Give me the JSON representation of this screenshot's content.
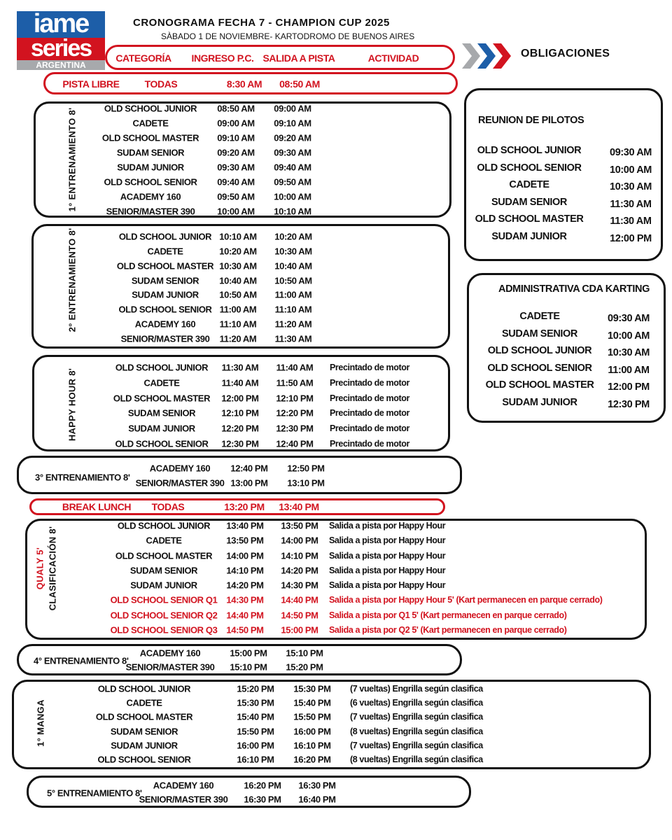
{
  "logo": {
    "line1": "iame",
    "line2": "series",
    "line3": "ARGENTINA",
    "colors": {
      "blue": "#1d5ea8",
      "red": "#d2131f",
      "gray": "#a7a9ac"
    }
  },
  "header": {
    "title": "CRONOGRAMA FECHA 7 - CHAMPION CUP 2025",
    "subtitle": "SÀBADO 1 DE NOVIEMBRE- KARTODROMO DE BUENOS AIRES",
    "columns": [
      "CATEGORÍA",
      "INGRESO P.C.",
      "SALIDA A PISTA",
      "ACTIVIDAD"
    ],
    "obligaciones": "OBLIGACIONES"
  },
  "accent_color": "#d2131f",
  "pista_libre": {
    "label": "PISTA LIBRE",
    "cat": "TODAS",
    "in": "8:30 AM",
    "out": "08:50 AM"
  },
  "break_lunch": {
    "label": "BREAK LUNCH",
    "cat": "TODAS",
    "in": "13:20 PM",
    "out": "13:40 PM"
  },
  "sessions": [
    {
      "label": "1° ENTRENAMIENTO 8'",
      "rows": [
        [
          "OLD SCHOOL JUNIOR",
          "08:50 AM",
          "09:00 AM",
          ""
        ],
        [
          "CADETE",
          "09:00 AM",
          "09:10 AM",
          ""
        ],
        [
          "OLD SCHOOL MASTER",
          "09:10 AM",
          "09:20 AM",
          ""
        ],
        [
          "SUDAM SENIOR",
          "09:20 AM",
          "09:30 AM",
          ""
        ],
        [
          "SUDAM JUNIOR",
          "09:30 AM",
          "09:40 AM",
          ""
        ],
        [
          "OLD SCHOOL SENIOR",
          "09:40 AM",
          "09:50 AM",
          ""
        ],
        [
          "ACADEMY 160",
          "09:50 AM",
          "10:00 AM",
          ""
        ],
        [
          "SENIOR/MASTER 390",
          "10:00 AM",
          "10:10 AM",
          ""
        ]
      ]
    },
    {
      "label": "2° ENTRENAMIENTO 8'",
      "rows": [
        [
          "OLD SCHOOL JUNIOR",
          "10:10 AM",
          "10:20 AM",
          ""
        ],
        [
          "CADETE",
          "10:20 AM",
          "10:30 AM",
          ""
        ],
        [
          "OLD SCHOOL MASTER",
          "10:30 AM",
          "10:40 AM",
          ""
        ],
        [
          "SUDAM SENIOR",
          "10:40 AM",
          "10:50 AM",
          ""
        ],
        [
          "SUDAM JUNIOR",
          "10:50 AM",
          "11:00 AM",
          ""
        ],
        [
          "OLD SCHOOL SENIOR",
          "11:00 AM",
          "11:10 AM",
          ""
        ],
        [
          "ACADEMY 160",
          "11:10 AM",
          "11:20 AM",
          ""
        ],
        [
          "SENIOR/MASTER 390",
          "11:20 AM",
          "11:30 AM",
          ""
        ]
      ]
    },
    {
      "label": "HAPPY HOUR 8'",
      "rows": [
        [
          "OLD SCHOOL JUNIOR",
          "11:30 AM",
          "11:40 AM",
          "Precintado de motor"
        ],
        [
          "CADETE",
          "11:40 AM",
          "11:50 AM",
          "Precintado de motor"
        ],
        [
          "OLD SCHOOL MASTER",
          "12:00 PM",
          "12:10 PM",
          "Precintado de motor"
        ],
        [
          "SUDAM SENIOR",
          "12:10 PM",
          "12:20 PM",
          "Precintado de motor"
        ],
        [
          "SUDAM JUNIOR",
          "12:20 PM",
          "12:30 PM",
          "Precintado de motor"
        ],
        [
          "OLD SCHOOL SENIOR",
          "12:30 PM",
          "12:40 PM",
          "Precintado de motor"
        ]
      ]
    },
    {
      "label": "3° ENTRENAMIENTO 8'",
      "rows": [
        [
          "ACADEMY 160",
          "12:40 PM",
          "12:50 PM",
          ""
        ],
        [
          "SENIOR/MASTER 390",
          "13:00 PM",
          "13:10 PM",
          ""
        ]
      ]
    },
    {
      "label": "CLASIFICACIÓN 8'",
      "label2": "QUALY 5'",
      "rows": [
        [
          "OLD SCHOOL JUNIOR",
          "13:40 PM",
          "13:50 PM",
          "Salida a pista por Happy Hour"
        ],
        [
          "CADETE",
          "13:50 PM",
          "14:00 PM",
          "Salida a pista por Happy Hour"
        ],
        [
          "OLD SCHOOL MASTER",
          "14:00 PM",
          "14:10 PM",
          "Salida a pista por Happy Hour"
        ],
        [
          "SUDAM SENIOR",
          "14:10 PM",
          "14:20 PM",
          "Salida a pista por Happy Hour"
        ],
        [
          "SUDAM JUNIOR",
          "14:20 PM",
          "14:30 PM",
          "Salida a pista por Happy Hour"
        ],
        [
          "OLD SCHOOL SENIOR Q1",
          "14:30 PM",
          "14:40 PM",
          "Salida a pista por Happy Hour 5' (Kart permanecen en parque cerrado)"
        ],
        [
          "OLD SCHOOL SENIOR Q2",
          "14:40 PM",
          "14:50 PM",
          "Salida a pista por Q1 5' (Kart permanecen en parque cerrado)"
        ],
        [
          "OLD SCHOOL SENIOR Q3",
          "14:50 PM",
          "15:00 PM",
          "Salida a pista por Q2 5' (Kart permanecen en parque cerrado)"
        ]
      ],
      "red_rows_from": 5
    },
    {
      "label": "4° ENTRENAMIENTO 8'",
      "rows": [
        [
          "ACADEMY 160",
          "15:00 PM",
          "15:10 PM",
          ""
        ],
        [
          "SENIOR/MASTER 390",
          "15:10 PM",
          "15:20 PM",
          ""
        ]
      ]
    },
    {
      "label": "1° MANGA",
      "rows": [
        [
          "OLD SCHOOL JUNIOR",
          "15:20 PM",
          "15:30 PM",
          "(7 vueltas) Engrilla según clasifica"
        ],
        [
          "CADETE",
          "15:30 PM",
          "15:40 PM",
          "(6 vueltas) Engrilla según clasifica"
        ],
        [
          "OLD SCHOOL MASTER",
          "15:40 PM",
          "15:50 PM",
          "(7 vueltas) Engrilla según clasifica"
        ],
        [
          "SUDAM SENIOR",
          "15:50 PM",
          "16:00 PM",
          "(8 vueltas) Engrilla según clasifica"
        ],
        [
          "SUDAM JUNIOR",
          "16:00 PM",
          "16:10 PM",
          "(7 vueltas) Engrilla según clasifica"
        ],
        [
          "OLD SCHOOL SENIOR",
          "16:10 PM",
          "16:20 PM",
          "(8 vueltas) Engrilla según clasifica"
        ]
      ]
    },
    {
      "label": "5° ENTRENAMIENTO 8'",
      "rows": [
        [
          "ACADEMY 160",
          "16:20 PM",
          "16:30 PM",
          ""
        ],
        [
          "SENIOR/MASTER 390",
          "16:30 PM",
          "16:40 PM",
          ""
        ]
      ]
    }
  ],
  "obligations": [
    {
      "title": "REUNION DE PILOTOS",
      "rows": [
        [
          "OLD SCHOOL JUNIOR",
          "09:30 AM"
        ],
        [
          "OLD SCHOOL SENIOR",
          "10:00 AM"
        ],
        [
          "CADETE",
          "10:30 AM"
        ],
        [
          "SUDAM SENIOR",
          "11:30 AM"
        ],
        [
          "OLD SCHOOL MASTER",
          "11:30 AM"
        ],
        [
          "SUDAM JUNIOR",
          "12:00 PM"
        ]
      ]
    },
    {
      "title": "ADMINISTRATIVA CDA KARTING",
      "rows": [
        [
          "CADETE",
          "09:30 AM"
        ],
        [
          "SUDAM SENIOR",
          "10:00 AM"
        ],
        [
          "OLD SCHOOL JUNIOR",
          "10:30 AM"
        ],
        [
          "OLD SCHOOL SENIOR",
          "11:00 AM"
        ],
        [
          "OLD SCHOOL MASTER",
          "12:00 PM"
        ],
        [
          "SUDAM JUNIOR",
          "12:30 PM"
        ]
      ]
    }
  ]
}
